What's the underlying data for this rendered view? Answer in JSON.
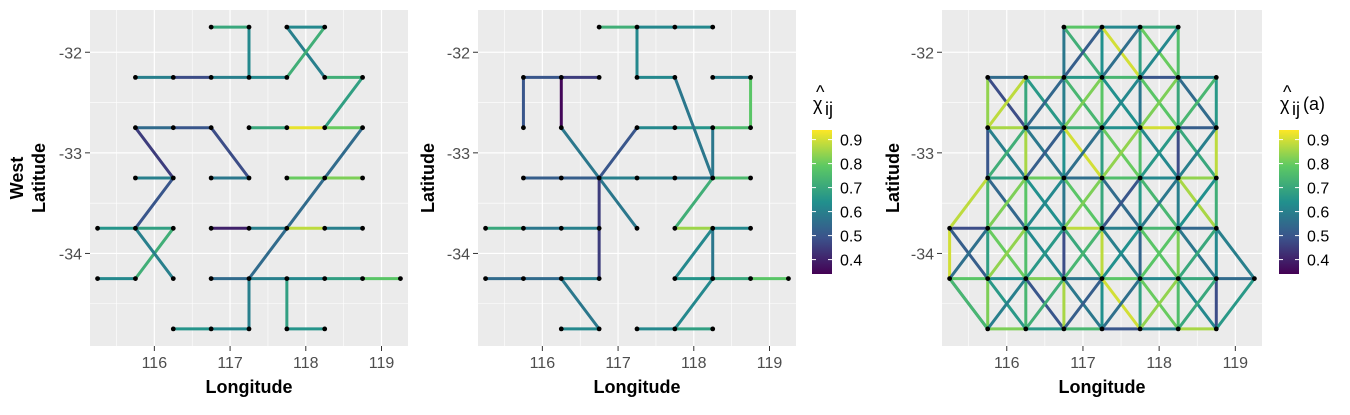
{
  "chart_data": [
    {
      "type": "network",
      "title": "",
      "xlabel": "Longitude",
      "ylabel_lines": [
        "West",
        "Latitude"
      ],
      "xlim": [
        115.15,
        119.35
      ],
      "ylim": [
        -34.92,
        -31.58
      ],
      "xticks": [
        116,
        117,
        118,
        119
      ],
      "yticks": [
        -32,
        -33,
        -34
      ],
      "grid": true,
      "edges": [
        [
          116.75,
          -31.75,
          117.25,
          -31.75,
          0.7
        ],
        [
          117.25,
          -31.75,
          117.25,
          -32.25,
          0.62
        ],
        [
          117.75,
          -31.75,
          118.25,
          -31.75,
          0.62
        ],
        [
          117.75,
          -31.75,
          118.25,
          -32.25,
          0.6
        ],
        [
          118.25,
          -31.75,
          117.75,
          -32.25,
          0.72
        ],
        [
          115.75,
          -32.25,
          116.25,
          -32.25,
          0.6
        ],
        [
          116.25,
          -32.25,
          116.75,
          -32.25,
          0.48
        ],
        [
          116.75,
          -32.25,
          117.25,
          -32.25,
          0.6
        ],
        [
          117.25,
          -32.25,
          117.75,
          -32.25,
          0.62
        ],
        [
          118.25,
          -32.25,
          118.75,
          -32.25,
          0.72
        ],
        [
          118.75,
          -32.25,
          118.25,
          -32.75,
          0.68
        ],
        [
          115.75,
          -32.75,
          116.25,
          -32.75,
          0.55
        ],
        [
          116.25,
          -32.75,
          116.75,
          -32.75,
          0.5
        ],
        [
          115.75,
          -32.75,
          116.25,
          -33.25,
          0.45
        ],
        [
          116.75,
          -32.75,
          117.25,
          -33.25,
          0.48
        ],
        [
          117.25,
          -32.75,
          117.75,
          -32.75,
          0.7
        ],
        [
          117.75,
          -32.75,
          118.25,
          -32.75,
          0.92
        ],
        [
          118.25,
          -32.75,
          118.75,
          -32.75,
          0.8
        ],
        [
          118.75,
          -32.75,
          117.75,
          -33.75,
          0.55
        ],
        [
          115.75,
          -33.25,
          116.25,
          -33.25,
          0.6
        ],
        [
          116.25,
          -33.25,
          115.75,
          -33.75,
          0.5
        ],
        [
          116.75,
          -33.25,
          117.25,
          -33.25,
          0.58
        ],
        [
          117.75,
          -33.25,
          118.25,
          -33.25,
          0.8
        ],
        [
          118.25,
          -33.25,
          118.75,
          -33.25,
          0.82
        ],
        [
          115.25,
          -33.75,
          115.75,
          -33.75,
          0.65
        ],
        [
          115.75,
          -33.75,
          116.25,
          -33.75,
          0.68
        ],
        [
          116.25,
          -33.75,
          115.75,
          -34.25,
          0.72
        ],
        [
          115.75,
          -33.75,
          116.25,
          -34.25,
          0.6
        ],
        [
          116.75,
          -33.75,
          117.25,
          -33.75,
          0.4
        ],
        [
          117.25,
          -33.75,
          117.75,
          -33.75,
          0.6
        ],
        [
          117.75,
          -33.75,
          118.25,
          -33.75,
          0.88
        ],
        [
          118.25,
          -33.75,
          118.75,
          -33.75,
          0.6
        ],
        [
          117.75,
          -33.75,
          117.25,
          -34.25,
          0.55
        ],
        [
          115.25,
          -34.25,
          115.75,
          -34.25,
          0.62
        ],
        [
          116.75,
          -34.25,
          117.25,
          -34.25,
          0.55
        ],
        [
          117.25,
          -34.25,
          117.75,
          -34.25,
          0.6
        ],
        [
          117.75,
          -34.25,
          118.25,
          -34.25,
          0.62
        ],
        [
          118.25,
          -34.25,
          118.75,
          -34.25,
          0.68
        ],
        [
          118.75,
          -34.25,
          119.25,
          -34.25,
          0.78
        ],
        [
          117.25,
          -34.25,
          117.25,
          -34.75,
          0.6
        ],
        [
          117.75,
          -34.25,
          117.75,
          -34.75,
          0.68
        ],
        [
          116.25,
          -34.75,
          116.75,
          -34.75,
          0.65
        ],
        [
          116.75,
          -34.75,
          117.25,
          -34.75,
          0.62
        ],
        [
          117.75,
          -34.75,
          118.25,
          -34.75,
          0.65
        ]
      ]
    },
    {
      "type": "network",
      "title": "",
      "xlabel": "Longitude",
      "ylabel_lines": [
        "Latitude"
      ],
      "xlim": [
        115.15,
        119.35
      ],
      "ylim": [
        -34.92,
        -31.58
      ],
      "xticks": [
        116,
        117,
        118,
        119
      ],
      "yticks": [
        -32,
        -33,
        -34
      ],
      "grid": true,
      "edges": [
        [
          116.75,
          -31.75,
          117.25,
          -31.75,
          0.72
        ],
        [
          117.25,
          -31.75,
          117.75,
          -31.75,
          0.62
        ],
        [
          117.75,
          -31.75,
          118.25,
          -31.75,
          0.62
        ],
        [
          117.25,
          -31.75,
          117.25,
          -32.25,
          0.62
        ],
        [
          117.25,
          -32.25,
          117.75,
          -32.25,
          0.62
        ],
        [
          115.75,
          -32.25,
          116.25,
          -32.25,
          0.5
        ],
        [
          116.25,
          -32.25,
          116.75,
          -32.25,
          0.45
        ],
        [
          115.75,
          -32.25,
          115.75,
          -32.75,
          0.5
        ],
        [
          116.25,
          -32.25,
          116.25,
          -32.75,
          0.35
        ],
        [
          118.25,
          -32.25,
          118.75,
          -32.25,
          0.6
        ],
        [
          118.75,
          -32.25,
          118.75,
          -32.75,
          0.78
        ],
        [
          116.25,
          -32.75,
          116.75,
          -33.25,
          0.58
        ],
        [
          117.25,
          -32.75,
          116.75,
          -33.25,
          0.5
        ],
        [
          117.25,
          -32.75,
          117.75,
          -32.75,
          0.62
        ],
        [
          117.75,
          -32.75,
          118.25,
          -32.75,
          0.65
        ],
        [
          118.25,
          -32.75,
          118.75,
          -32.75,
          0.75
        ],
        [
          116.75,
          -33.25,
          117.25,
          -33.25,
          0.6
        ],
        [
          116.75,
          -33.25,
          117.25,
          -33.75,
          0.58
        ],
        [
          117.25,
          -33.25,
          117.75,
          -33.25,
          0.6
        ],
        [
          117.75,
          -33.25,
          118.25,
          -33.25,
          0.58
        ],
        [
          118.25,
          -33.25,
          118.75,
          -33.25,
          0.75
        ],
        [
          118.25,
          -32.75,
          118.25,
          -33.25,
          0.58
        ],
        [
          117.75,
          -32.25,
          118.25,
          -33.25,
          0.58
        ],
        [
          115.75,
          -33.25,
          116.25,
          -33.25,
          0.52
        ],
        [
          116.25,
          -33.25,
          116.75,
          -33.25,
          0.52
        ],
        [
          116.75,
          -33.25,
          116.75,
          -34.25,
          0.45
        ],
        [
          118.25,
          -33.25,
          117.75,
          -33.75,
          0.72
        ],
        [
          115.25,
          -33.75,
          115.75,
          -33.75,
          0.7
        ],
        [
          115.75,
          -33.75,
          116.25,
          -33.75,
          0.58
        ],
        [
          116.25,
          -33.75,
          116.75,
          -33.75,
          0.6
        ],
        [
          117.75,
          -33.75,
          118.25,
          -33.75,
          0.85
        ],
        [
          118.25,
          -33.75,
          118.75,
          -33.75,
          0.62
        ],
        [
          118.25,
          -33.75,
          117.75,
          -34.25,
          0.62
        ],
        [
          118.25,
          -33.75,
          118.25,
          -34.25,
          0.58
        ],
        [
          115.25,
          -34.25,
          115.75,
          -34.25,
          0.55
        ],
        [
          115.75,
          -34.25,
          116.25,
          -34.25,
          0.55
        ],
        [
          116.25,
          -34.25,
          116.75,
          -34.25,
          0.6
        ],
        [
          116.25,
          -34.25,
          116.75,
          -34.75,
          0.58
        ],
        [
          117.75,
          -34.25,
          118.25,
          -34.25,
          0.65
        ],
        [
          118.25,
          -34.25,
          118.75,
          -34.25,
          0.7
        ],
        [
          118.75,
          -34.25,
          119.25,
          -34.25,
          0.78
        ],
        [
          118.25,
          -34.25,
          117.75,
          -34.75,
          0.62
        ],
        [
          116.25,
          -34.75,
          116.75,
          -34.75,
          0.62
        ],
        [
          117.25,
          -34.75,
          117.75,
          -34.75,
          0.62
        ],
        [
          117.75,
          -34.75,
          118.25,
          -34.75,
          0.68
        ]
      ]
    },
    {
      "type": "network",
      "title": "",
      "xlabel": "Longitude",
      "ylabel_lines": [
        "Latitude"
      ],
      "xlim": [
        115.15,
        119.35
      ],
      "ylim": [
        -34.92,
        -31.58
      ],
      "xticks": [
        116,
        117,
        118,
        119
      ],
      "yticks": [
        -32,
        -33,
        -34
      ],
      "grid": true,
      "rows": [
        {
          "lat": -31.75,
          "x0": 116.75,
          "x1": 118.25
        },
        {
          "lat": -32.25,
          "x0": 115.75,
          "x1": 118.75
        },
        {
          "lat": -32.75,
          "x0": 115.75,
          "x1": 118.75
        },
        {
          "lat": -33.25,
          "x0": 115.75,
          "x1": 118.75
        },
        {
          "lat": -33.75,
          "x0": 115.25,
          "x1": 118.75
        },
        {
          "lat": -34.25,
          "x0": 115.25,
          "x1": 119.25
        },
        {
          "lat": -34.75,
          "x0": 115.75,
          "x1": 118.75
        }
      ],
      "edge_values": [
        0.78,
        0.62,
        0.7,
        0.55,
        0.82,
        0.66,
        0.74,
        0.5,
        0.6,
        0.86,
        0.58,
        0.72,
        0.64,
        0.9,
        0.52,
        0.68,
        0.8,
        0.56,
        0.76,
        0.62,
        0.84,
        0.48,
        0.7,
        0.66,
        0.88,
        0.6,
        0.74,
        0.54,
        0.78,
        0.64,
        0.82,
        0.58
      ]
    }
  ],
  "legends": [
    {
      "title_main": "χ",
      "title_hat": "^",
      "title_sub": "ij",
      "title_suffix": "",
      "labels": [
        "0.9",
        "0.8",
        "0.7",
        "0.6",
        "0.5",
        "0.4"
      ],
      "values": [
        0.9,
        0.8,
        0.7,
        0.6,
        0.5,
        0.4
      ],
      "range": [
        0.34,
        0.94
      ]
    },
    {
      "title_main": "χ",
      "title_hat": "^",
      "title_sub": "ij",
      "title_suffix": "(a)",
      "labels": [
        "0.9",
        "0.8",
        "0.7",
        "0.6",
        "0.5",
        "0.4"
      ],
      "values": [
        0.9,
        0.8,
        0.7,
        0.6,
        0.5,
        0.4
      ],
      "range": [
        0.34,
        0.94
      ]
    }
  ],
  "colors": {
    "panel_background": "#ebebeb",
    "grid_line": "#ffffff",
    "node": "#000000",
    "colormap": [
      "#440154",
      "#3b528b",
      "#21908d",
      "#5dc963",
      "#fde725"
    ]
  }
}
